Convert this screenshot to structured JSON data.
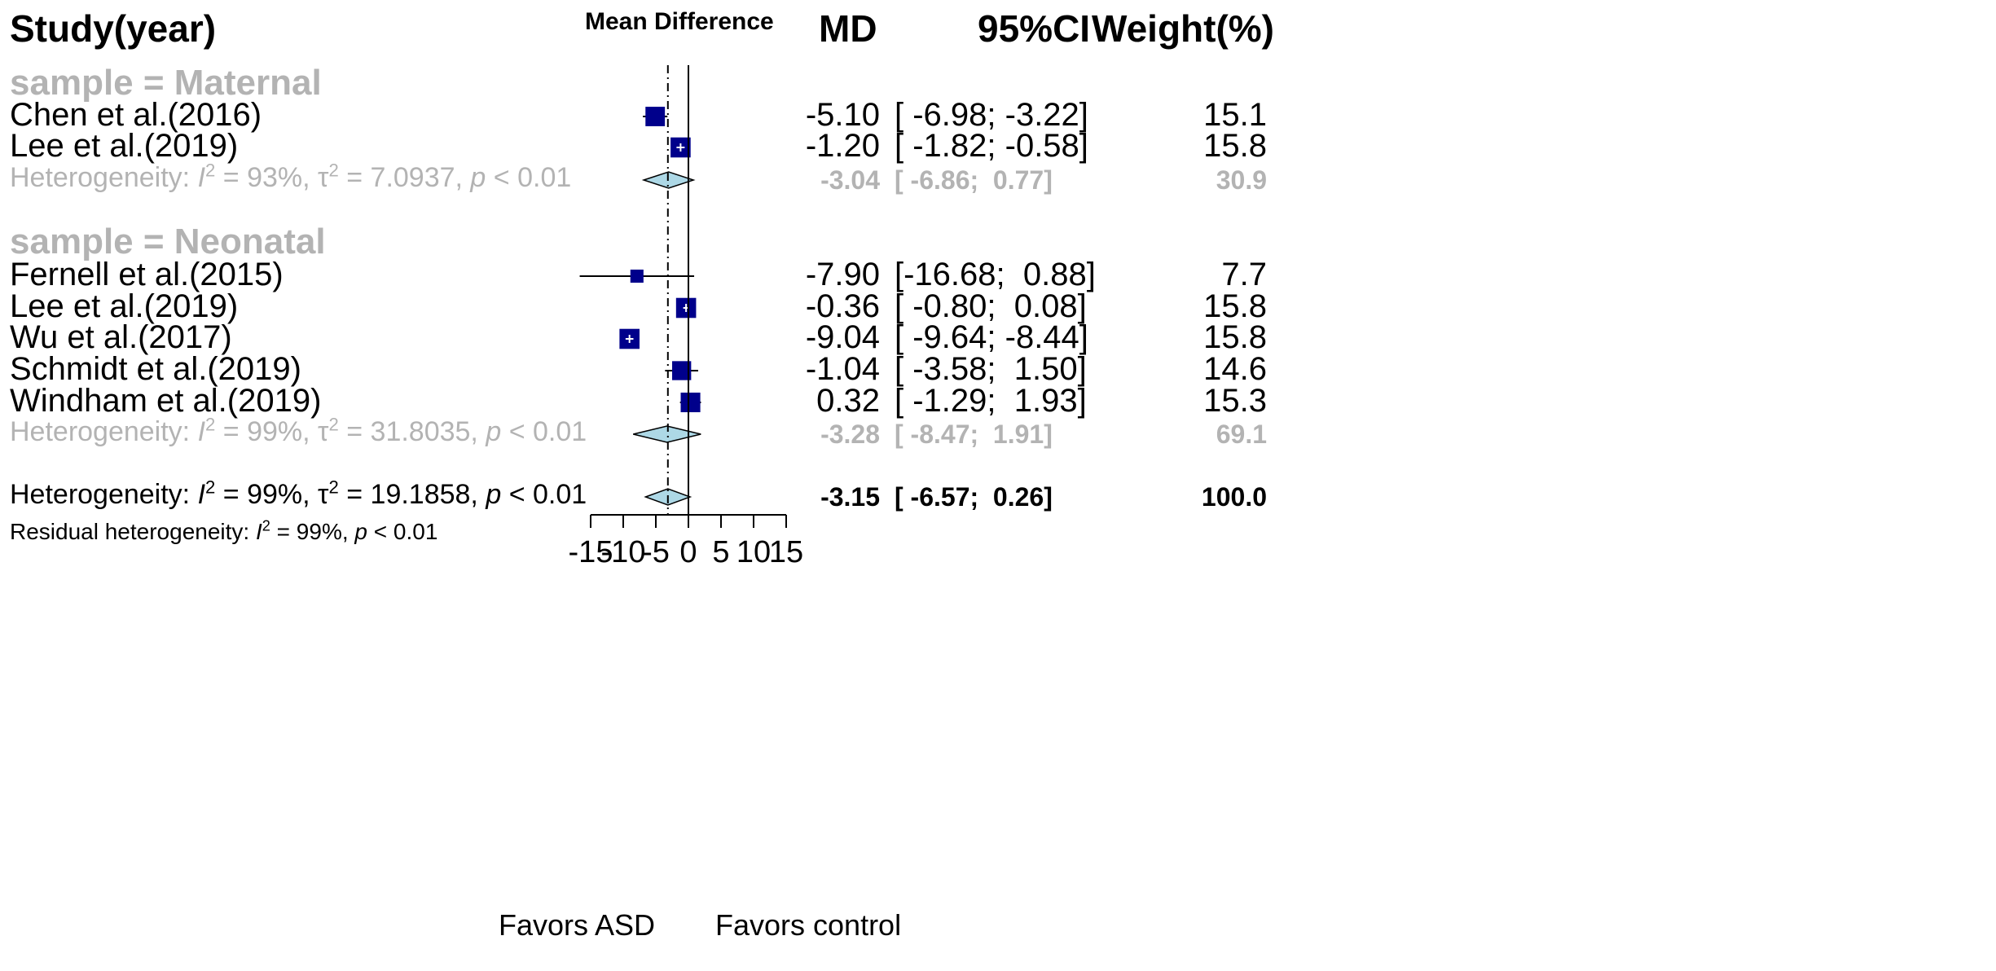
{
  "header": {
    "study": "Study(year)",
    "effect": "Mean Difference",
    "md": "MD",
    "ci": "95%CI",
    "weight": "Weight(%)"
  },
  "footer": {
    "favors_left": "Favors ASD",
    "favors_right": "Favors control"
  },
  "chart_data": {
    "type": "forest",
    "title": "Mean Difference",
    "xlim": [
      -15,
      15
    ],
    "xticks": [
      -15,
      -10,
      -5,
      0,
      5,
      10,
      15
    ],
    "xtick_labels": [
      "-15",
      "-10",
      "-5",
      "0",
      "5",
      "10",
      "15"
    ],
    "null_line": 0,
    "overall_line": -3.15,
    "groups": [
      {
        "label": "sample = Maternal",
        "studies": [
          {
            "name": "Chen et al.(2016)",
            "md": -5.1,
            "lo": -6.98,
            "hi": -3.22,
            "md_text": "-5.10",
            "ci_text": "[ -6.98; -3.22]",
            "weight": 15.1,
            "weight_text": "15.1"
          },
          {
            "name": "Lee et al.(2019)",
            "md": -1.2,
            "lo": -1.82,
            "hi": -0.58,
            "md_text": "-1.20",
            "ci_text": "[ -1.82; -0.58]",
            "weight": 15.8,
            "weight_text": "15.8"
          }
        ],
        "summary": {
          "md": -3.04,
          "lo": -6.86,
          "hi": 0.77,
          "md_text": "-3.04",
          "ci_text": "[ -6.86;  0.77]",
          "weight_text": "30.9",
          "het_prefix": "Heterogeneity: ",
          "het_i2_sym": "I",
          "het_i2_val": " = 93%, ",
          "het_tau_sym": "τ",
          "het_tau_val": " = 7.0937, ",
          "het_p_sym": "p",
          "het_p_val": " < 0.01"
        }
      },
      {
        "label": "sample = Neonatal",
        "studies": [
          {
            "name": "Fernell et al.(2015)",
            "md": -7.9,
            "lo": -16.68,
            "hi": 0.88,
            "md_text": "-7.90",
            "ci_text": "[-16.68;  0.88]",
            "weight": 7.7,
            "weight_text": "7.7"
          },
          {
            "name": "Lee et al.(2019)",
            "md": -0.36,
            "lo": -0.8,
            "hi": 0.08,
            "md_text": "-0.36",
            "ci_text": "[ -0.80;  0.08]",
            "weight": 15.8,
            "weight_text": "15.8"
          },
          {
            "name": "Wu et al.(2017)",
            "md": -9.04,
            "lo": -9.64,
            "hi": -8.44,
            "md_text": "-9.04",
            "ci_text": "[ -9.64; -8.44]",
            "weight": 15.8,
            "weight_text": "15.8"
          },
          {
            "name": "Schmidt et al.(2019)",
            "md": -1.04,
            "lo": -3.58,
            "hi": 1.5,
            "md_text": "-1.04",
            "ci_text": "[ -3.58;  1.50]",
            "weight": 14.6,
            "weight_text": "14.6"
          },
          {
            "name": "Windham et al.(2019)",
            "md": 0.32,
            "lo": -1.29,
            "hi": 1.93,
            "md_text": "0.32",
            "ci_text": "[ -1.29;  1.93]",
            "weight": 15.3,
            "weight_text": "15.3"
          }
        ],
        "summary": {
          "md": -3.28,
          "lo": -8.47,
          "hi": 1.91,
          "md_text": "-3.28",
          "ci_text": "[ -8.47;  1.91]",
          "weight_text": "69.1",
          "het_prefix": "Heterogeneity: ",
          "het_i2_sym": "I",
          "het_i2_val": " = 99%, ",
          "het_tau_sym": "τ",
          "het_tau_val": " = 31.8035, ",
          "het_p_sym": "p",
          "het_p_val": " < 0.01"
        }
      }
    ],
    "overall": {
      "md": -3.15,
      "lo": -6.57,
      "hi": 0.26,
      "md_text": "-3.15",
      "ci_text": "[ -6.57;  0.26]",
      "weight_text": "100.0",
      "het_prefix": "Heterogeneity: ",
      "het_i2_sym": "I",
      "het_i2_val": " = 99%, ",
      "het_tau_sym": "τ",
      "het_tau_val": " = 19.1858, ",
      "het_p_sym": "p",
      "het_p_val": " < 0.01",
      "resid_prefix": "Residual heterogeneity: ",
      "resid_i2_sym": "I",
      "resid_i2_val": " = 99%, ",
      "resid_p_sym": "p",
      "resid_p_val": " < 0.01"
    },
    "colors": {
      "square": "#00008b",
      "diamond_fill": "#add8e6",
      "text_grey": "#b3b3b3",
      "line": "#000000"
    }
  }
}
